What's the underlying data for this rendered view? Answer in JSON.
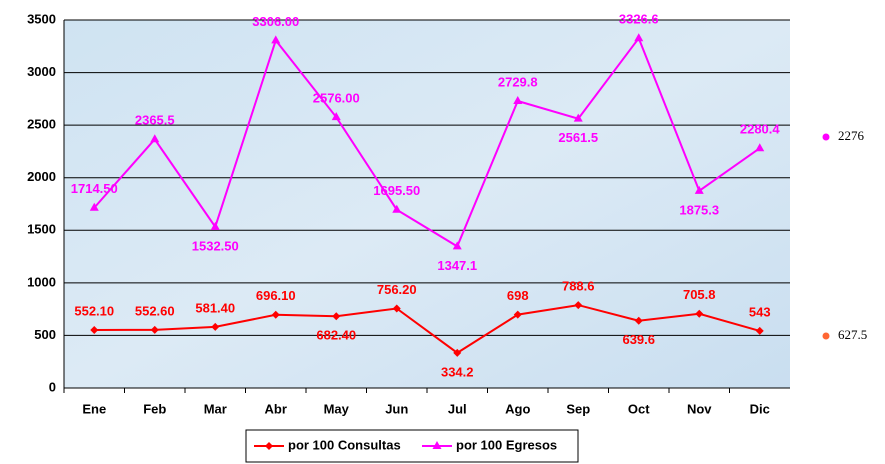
{
  "chart_data": {
    "type": "line",
    "categories": [
      "Ene",
      "Feb",
      "Mar",
      "Abr",
      "May",
      "Jun",
      "Jul",
      "Ago",
      "Sep",
      "Oct",
      "Nov",
      "Dic"
    ],
    "series": [
      {
        "name": "por 100 Consultas",
        "color": "#ff0000",
        "marker": "diamond",
        "values": [
          552.1,
          552.6,
          581.4,
          696.1,
          682.4,
          756.2,
          334.2,
          698,
          788.6,
          639.6,
          705.8,
          543
        ],
        "value_labels": [
          "552.10",
          "552.60",
          "581.40",
          "696.10",
          "682.40",
          "756.20",
          "334.2",
          "698",
          "788.6",
          "639.6",
          "705.8",
          "543"
        ]
      },
      {
        "name": "por 100 Egresos",
        "color": "#ff00ff",
        "marker": "triangle",
        "values": [
          1714.5,
          2365.5,
          1532.5,
          3306,
          2576,
          1695.5,
          1347.1,
          2729.8,
          2561.5,
          3326.6,
          1875.3,
          2280.4
        ],
        "value_labels": [
          "1714.50",
          "2365.5",
          "1532.50",
          "3306.00",
          "2576.00",
          "1695.50",
          "1347.1",
          "2729.8",
          "2561.5",
          "3326.6",
          "1875.3",
          "2280.4"
        ]
      }
    ],
    "annotations": [
      {
        "value": 2276,
        "color": "#ff00ff"
      },
      {
        "value": 627.5,
        "color": "#ff6633"
      }
    ],
    "ylim": [
      0,
      3500
    ],
    "yticks": [
      0,
      500,
      1000,
      1500,
      2000,
      2500,
      3000,
      3500
    ],
    "grid": true,
    "legend": "bottom"
  }
}
